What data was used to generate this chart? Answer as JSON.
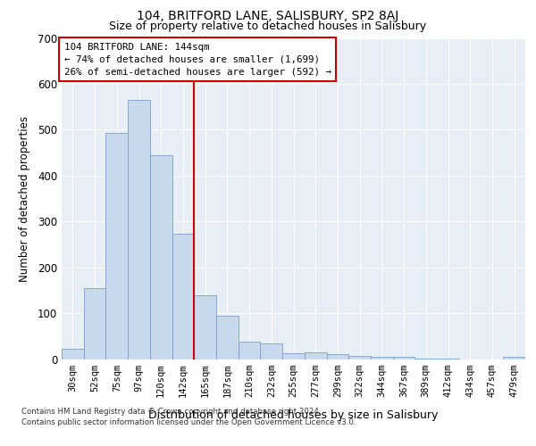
{
  "title": "104, BRITFORD LANE, SALISBURY, SP2 8AJ",
  "subtitle": "Size of property relative to detached houses in Salisbury",
  "xlabel": "Distribution of detached houses by size in Salisbury",
  "ylabel": "Number of detached properties",
  "categories": [
    "30sqm",
    "52sqm",
    "75sqm",
    "97sqm",
    "120sqm",
    "142sqm",
    "165sqm",
    "187sqm",
    "210sqm",
    "232sqm",
    "255sqm",
    "277sqm",
    "299sqm",
    "322sqm",
    "344sqm",
    "367sqm",
    "389sqm",
    "412sqm",
    "434sqm",
    "457sqm",
    "479sqm"
  ],
  "values": [
    22,
    155,
    492,
    565,
    445,
    273,
    140,
    95,
    37,
    35,
    13,
    14,
    10,
    7,
    5,
    4,
    1,
    1,
    0,
    0,
    5
  ],
  "bar_color": "#c9d9ed",
  "bar_edge_color": "#7a9fcc",
  "vline_x": 5.5,
  "vline_color": "#cc0000",
  "annotation_title": "104 BRITFORD LANE: 144sqm",
  "annotation_line1": "← 74% of detached houses are smaller (1,699)",
  "annotation_line2": "26% of semi-detached houses are larger (592) →",
  "annotation_box_color": "#ffffff",
  "annotation_box_edge": "#cc0000",
  "ylim": [
    0,
    700
  ],
  "yticks": [
    0,
    100,
    200,
    300,
    400,
    500,
    600,
    700
  ],
  "footer1": "Contains HM Land Registry data © Crown copyright and database right 2024.",
  "footer2": "Contains public sector information licensed under the Open Government Licence v3.0.",
  "fig_facecolor": "#ffffff",
  "plot_background": "#e8eef5"
}
